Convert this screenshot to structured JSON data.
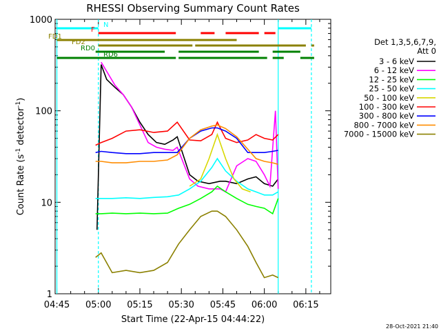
{
  "chart_data": {
    "type": "line",
    "title": "RHESSI Observing Summary Count Rates",
    "xlabel": "Start Time (22-Apr-15 04:44:22)",
    "ylabel": "Count Rate (s",
    "ylabel_sup": "-1",
    "ylabel_tail": " detector",
    "ylabel_sup2": "-1",
    "ylabel_close": ")",
    "x_ticks": [
      "04:45",
      "05:00",
      "05:15",
      "05:30",
      "05:45",
      "06:00",
      "06:15"
    ],
    "y_ticks": [
      "1",
      "10",
      "100",
      "1000"
    ],
    "y_scale": "log",
    "ylim": [
      1,
      1000
    ],
    "legend_header": [
      "Det 1,3,5,6,7,9,",
      "Att 0"
    ],
    "legend_position": "right",
    "timestamp": "28-Oct-2021 21:40",
    "colors": {
      "c3_6": "#000000",
      "c6_12": "#ff00ff",
      "c12_25": "#00ff00",
      "c25_50": "#00ffff",
      "c50_100": "#d8d800",
      "c100_300": "#ff0000",
      "c300_800": "#0000ff",
      "c800_7000": "#ff8c00",
      "c7000_15000": "#8b8000"
    },
    "flags": {
      "N": "N",
      "F": "F",
      "FD1": "FD1",
      "FD2": "FD2",
      "RD0": "RD0",
      "RD6": "RD6"
    },
    "series": [
      {
        "name": "3 - 6 keV",
        "color_key": "c3_6",
        "x": [
          "04:59:30",
          "05:01",
          "05:03",
          "05:06",
          "05:09",
          "05:12",
          "05:15",
          "05:18",
          "05:21",
          "05:24",
          "05:27",
          "05:28:30",
          "05:33",
          "05:36",
          "05:40",
          "05:44",
          "05:46",
          "05:50",
          "05:54",
          "05:57",
          "06:00",
          "06:03",
          "06:05"
        ],
        "y": [
          5,
          320,
          220,
          180,
          150,
          110,
          75,
          55,
          45,
          43,
          48,
          52,
          20,
          17,
          16,
          17,
          17,
          16,
          18,
          19,
          16,
          15,
          18
        ]
      },
      {
        "name": "6 - 12 keV",
        "color_key": "c6_12",
        "x": [
          "05:01",
          "05:03",
          "05:06",
          "05:09",
          "05:12",
          "05:15",
          "05:18",
          "05:21",
          "05:24",
          "05:27",
          "05:28:30",
          "05:33",
          "05:36",
          "05:40",
          "05:44",
          "05:46",
          "05:50",
          "05:54",
          "05:57",
          "06:00",
          "06:02",
          "06:04",
          "06:05"
        ],
        "y": [
          340,
          270,
          190,
          150,
          110,
          70,
          45,
          40,
          38,
          37,
          40,
          18,
          15,
          14,
          14,
          13,
          25,
          30,
          28,
          20,
          15,
          100,
          14
        ]
      },
      {
        "name": "12 - 25 keV",
        "color_key": "c12_25",
        "x": [
          "04:59",
          "05:01",
          "05:05",
          "05:10",
          "05:15",
          "05:20",
          "05:25",
          "05:29",
          "05:33",
          "05:37",
          "05:41",
          "05:43",
          "05:46",
          "05:50",
          "05:54",
          "05:57",
          "06:00",
          "06:03",
          "06:05"
        ],
        "y": [
          7.5,
          7.5,
          7.6,
          7.5,
          7.6,
          7.5,
          7.6,
          8.6,
          9.5,
          11,
          13,
          15,
          13,
          11,
          9.5,
          9,
          8.6,
          7.5,
          11
        ]
      },
      {
        "name": "25 - 50 keV",
        "color_key": "c25_50",
        "x": [
          "04:59",
          "05:01",
          "05:05",
          "05:10",
          "05:15",
          "05:20",
          "05:25",
          "05:29",
          "05:33",
          "05:37",
          "05:41",
          "05:43",
          "05:46",
          "05:50",
          "05:54",
          "05:57",
          "06:00",
          "06:03",
          "06:05"
        ],
        "y": [
          11,
          11,
          11,
          11.2,
          11,
          11.3,
          11.5,
          12,
          14,
          17,
          24,
          30,
          22,
          17,
          14,
          13,
          12,
          12,
          13
        ]
      },
      {
        "name": "50 - 100 keV",
        "color_key": "c50_100",
        "x": [
          "05:33",
          "05:37",
          "05:40",
          "05:43",
          "05:46",
          "05:49",
          "05:52",
          "05:55"
        ],
        "y": [
          15,
          18,
          30,
          55,
          30,
          18,
          14,
          13
        ]
      },
      {
        "name": "100 - 300 keV",
        "color_key": "c100_300",
        "x": [
          "04:59",
          "05:01",
          "05:05",
          "05:10",
          "05:15",
          "05:20",
          "05:25",
          "05:28:30",
          "05:33",
          "05:37",
          "05:41",
          "05:43",
          "05:46",
          "05:50",
          "05:54",
          "05:57",
          "06:00",
          "06:03",
          "06:05"
        ],
        "y": [
          42,
          45,
          50,
          60,
          62,
          58,
          60,
          75,
          48,
          47,
          55,
          75,
          50,
          45,
          48,
          55,
          50,
          48,
          55
        ]
      },
      {
        "name": "300 - 800 keV",
        "color_key": "c300_800",
        "x": [
          "04:59",
          "05:01",
          "05:05",
          "05:10",
          "05:15",
          "05:20",
          "05:25",
          "05:28:30",
          "05:33",
          "05:37",
          "05:41",
          "05:43",
          "05:46",
          "05:50",
          "05:54",
          "05:57",
          "06:00",
          "06:03",
          "06:05"
        ],
        "y": [
          35,
          36,
          35,
          34,
          34,
          35,
          35,
          35,
          50,
          60,
          65,
          65,
          60,
          50,
          35,
          35,
          35,
          36,
          37
        ]
      },
      {
        "name": "800 - 7000 keV",
        "color_key": "c800_7000",
        "x": [
          "04:59",
          "05:01",
          "05:05",
          "05:10",
          "05:15",
          "05:20",
          "05:25",
          "05:28:30",
          "05:33",
          "05:37",
          "05:41",
          "05:43",
          "05:46",
          "05:50",
          "05:54",
          "05:57",
          "06:00",
          "06:03",
          "06:05"
        ],
        "y": [
          28,
          28,
          27,
          27,
          28,
          28,
          29,
          33,
          50,
          62,
          68,
          70,
          64,
          52,
          38,
          30,
          28,
          27,
          26
        ]
      },
      {
        "name": "7000 - 15000 keV",
        "color_key": "c7000_15000",
        "x": [
          "04:59",
          "05:01",
          "05:05",
          "05:10",
          "05:15",
          "05:20",
          "05:25",
          "05:29",
          "05:33",
          "05:37",
          "05:41",
          "05:43",
          "05:46",
          "05:50",
          "05:54",
          "05:57",
          "06:00",
          "06:03",
          "06:05"
        ],
        "y": [
          2.5,
          2.8,
          1.7,
          1.8,
          1.7,
          1.8,
          2.2,
          3.5,
          5,
          7,
          8,
          8,
          7,
          5,
          3.3,
          2.2,
          1.5,
          1.6,
          1.5
        ]
      }
    ],
    "flag_segments": [
      {
        "name": "N",
        "color_key": "c25_50",
        "intervals": [
          [
            "04:45",
            "05:00"
          ],
          [
            "06:05",
            "06:17"
          ]
        ]
      },
      {
        "name": "F",
        "color_key": "c100_300",
        "intervals": [
          [
            "05:00",
            "05:28"
          ],
          [
            "05:37",
            "05:42"
          ],
          [
            "05:46",
            "05:58"
          ],
          [
            "06:00",
            "06:04"
          ]
        ]
      },
      {
        "name": "FD1",
        "color_key": "c7000_15000",
        "intervals": [
          [
            "04:45",
            "05:50"
          ]
        ]
      },
      {
        "name": "FD2",
        "color_key": "c7000_15000",
        "intervals": [
          [
            "05:00",
            "05:34"
          ],
          [
            "05:35",
            "06:15"
          ],
          [
            "06:17",
            "06:18"
          ]
        ]
      },
      {
        "name": "RD0",
        "color_key": "c12_25_dark",
        "intervals": [
          [
            "04:59",
            "05:24"
          ],
          [
            "05:29",
            "05:58"
          ],
          [
            "06:03",
            "06:13"
          ]
        ]
      },
      {
        "name": "RD6",
        "color_key": "c12_25_dark",
        "intervals": [
          [
            "04:45",
            "05:28"
          ],
          [
            "05:29",
            "06:01"
          ],
          [
            "06:03",
            "06:07"
          ],
          [
            "06:13",
            "06:18"
          ]
        ]
      }
    ],
    "vertical_markers": [
      {
        "x": "05:00",
        "color_key": "c25_50",
        "style": "dashed"
      },
      {
        "x": "06:17",
        "color_key": "c25_50",
        "style": "dashed"
      },
      {
        "x": "04:45",
        "color_key": "c25_50",
        "style": "solid"
      },
      {
        "x": "06:05",
        "color_key": "c25_50",
        "style": "solid"
      }
    ]
  }
}
